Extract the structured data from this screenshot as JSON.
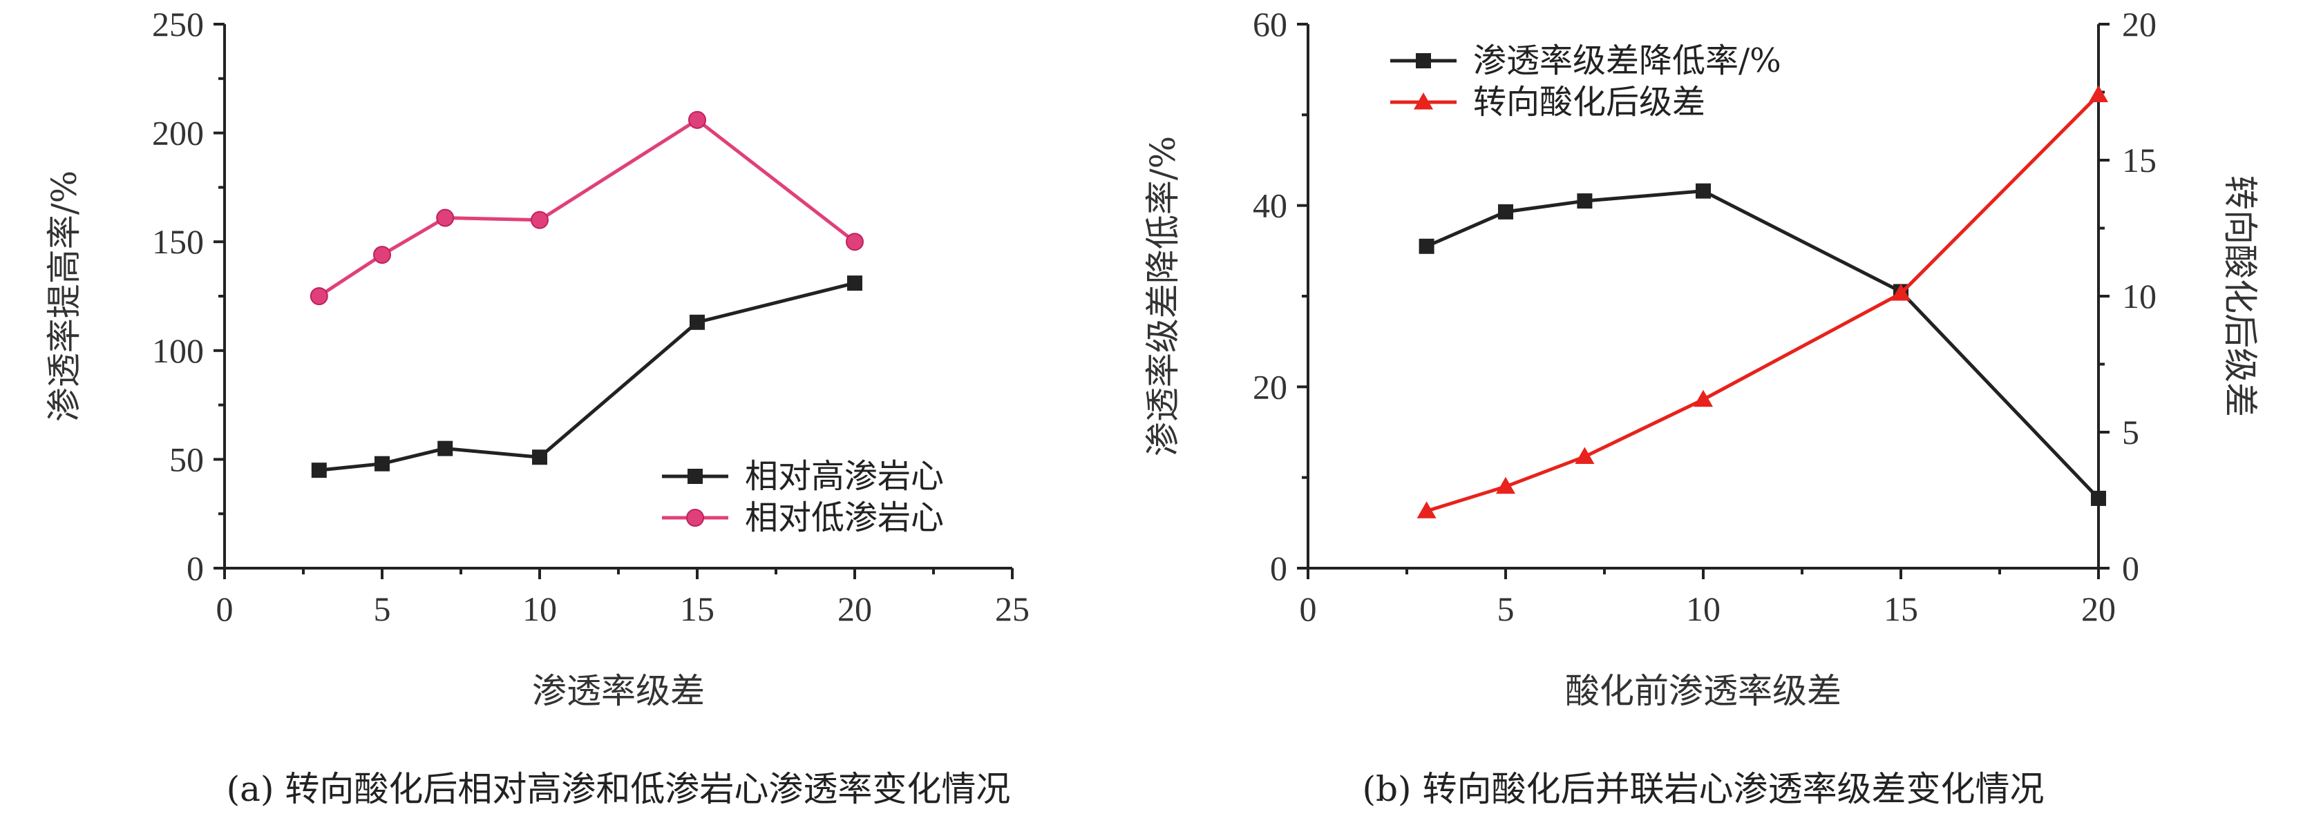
{
  "chart_data": [
    {
      "type": "line",
      "caption": "(a) 转向酸化后相对高渗和低渗岩心渗透率变化情况",
      "xlabel": "渗透率级差",
      "ylabel": "渗透率提高率/%",
      "xlim": [
        0,
        25
      ],
      "ylim": [
        0,
        250
      ],
      "xticks": [
        0,
        5,
        10,
        15,
        20,
        25
      ],
      "yticks": [
        0,
        50,
        100,
        150,
        200,
        250
      ],
      "legend_position": "lower-right",
      "series": [
        {
          "name": "相对高渗岩心",
          "color": "#222222",
          "marker": "square",
          "x": [
            3,
            5,
            7,
            10,
            15,
            20
          ],
          "y": [
            45,
            48,
            55,
            51,
            113,
            131
          ]
        },
        {
          "name": "相对低渗岩心",
          "color": "#e0407a",
          "marker": "circle",
          "x": [
            3,
            5,
            7,
            10,
            15,
            20
          ],
          "y": [
            125,
            144,
            161,
            160,
            206,
            150
          ]
        }
      ]
    },
    {
      "type": "line",
      "caption": "(b) 转向酸化后并联岩心渗透率级差变化情况",
      "xlabel": "酸化前渗透率级差",
      "ylabel": "渗透率级差降低率/%",
      "y2label": "转向酸化后级差",
      "xlim": [
        0,
        20
      ],
      "ylim": [
        0,
        60
      ],
      "y2lim": [
        0,
        20
      ],
      "xticks": [
        0,
        5,
        10,
        15,
        20
      ],
      "yticks": [
        0,
        20,
        40,
        60
      ],
      "y2ticks": [
        0,
        5,
        10,
        15,
        20
      ],
      "legend_position": "top-left",
      "series": [
        {
          "name": "渗透率级差降低率/%",
          "axis": "left",
          "color": "#222222",
          "marker": "square",
          "x": [
            3,
            5,
            7,
            10,
            15,
            20
          ],
          "y": [
            35.5,
            39.3,
            40.5,
            41.6,
            30.5,
            7.7
          ]
        },
        {
          "name": "转向酸化后级差",
          "axis": "right",
          "color": "#e8221c",
          "marker": "triangle",
          "x": [
            3,
            5,
            7,
            10,
            15,
            20
          ],
          "y": [
            2.1,
            3.0,
            4.1,
            6.2,
            10.1,
            17.4
          ]
        }
      ]
    }
  ]
}
